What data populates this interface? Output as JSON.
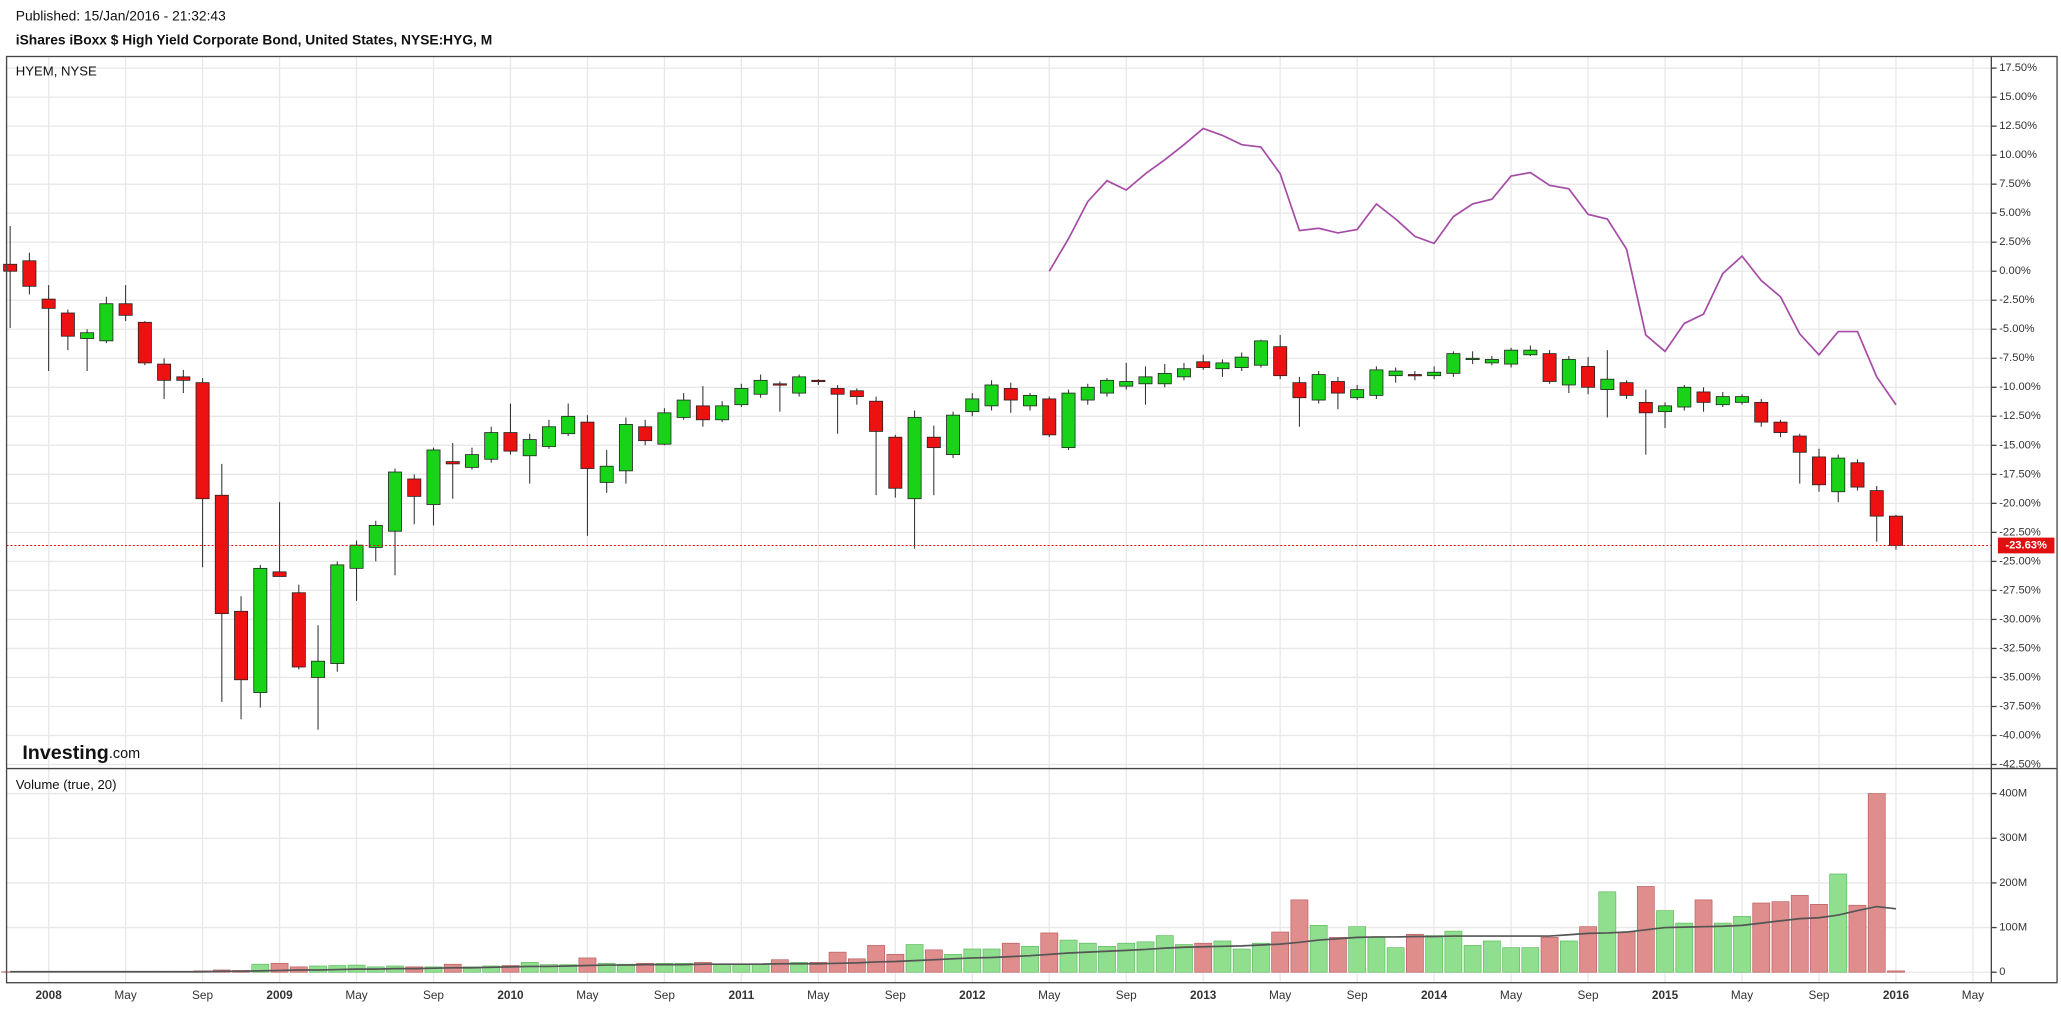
{
  "header": {
    "published": "Published: 15/Jan/2016 - 21:32:43",
    "title": "iShares iBoxx $ High Yield Corporate Bond, United States, NYSE:HYG, M"
  },
  "chart_data": [
    {
      "type": "candlestick",
      "title": "HYEM, NYSE",
      "logo": {
        "brand": "Investing",
        "suffix": ".com"
      },
      "categories": [
        null,
        null,
        "2008",
        null,
        null,
        null,
        "May",
        null,
        null,
        null,
        "Sep",
        null,
        null,
        null,
        "2009",
        null,
        null,
        null,
        "May",
        null,
        null,
        null,
        "Sep",
        null,
        null,
        null,
        "2010",
        null,
        null,
        null,
        "May",
        null,
        null,
        null,
        "Sep",
        null,
        null,
        null,
        "2011",
        null,
        null,
        null,
        "May",
        null,
        null,
        null,
        "Sep",
        null,
        null,
        null,
        "2012",
        null,
        null,
        null,
        "May",
        null,
        null,
        null,
        "Sep",
        null,
        null,
        null,
        "2013",
        null,
        null,
        null,
        "May",
        null,
        null,
        null,
        "Sep",
        null,
        null,
        null,
        "2014",
        null,
        null,
        null,
        "May",
        null,
        null,
        null,
        "Sep",
        null,
        null,
        null,
        "2015",
        null,
        null,
        null,
        "May",
        null,
        null,
        null,
        "Sep",
        null,
        null,
        null,
        "2016",
        null,
        null,
        null,
        "May"
      ],
      "open": [
        0.6,
        0.9,
        -2.4,
        -3.6,
        -5.8,
        -6.0,
        -2.8,
        -4.4,
        -8.0,
        -9.1,
        -9.6,
        -19.3,
        -29.3,
        -36.3,
        -25.9,
        -27.7,
        -35.0,
        -33.8,
        -25.6,
        -23.8,
        -22.4,
        -17.9,
        -20.1,
        -16.4,
        -16.9,
        -16.2,
        -13.9,
        -15.9,
        -15.1,
        -14.0,
        -13.0,
        -18.2,
        -17.2,
        -13.4,
        -14.9,
        -12.6,
        -11.6,
        -12.8,
        -11.5,
        -10.6,
        -9.7,
        -10.5,
        -9.4,
        -10.1,
        -10.3,
        -11.2,
        -14.3,
        -19.6,
        -14.3,
        -15.8,
        -12.1,
        -11.6,
        -10.1,
        -11.6,
        -11.0,
        -15.2,
        -11.1,
        -10.5,
        -9.9,
        -9.7,
        -9.7,
        -9.1,
        -7.8,
        -8.4,
        -8.3,
        -8.1,
        -6.5,
        -9.6,
        -11.1,
        -9.5,
        -10.9,
        -10.7,
        -9.0,
        -8.9,
        -9.0,
        -8.8,
        -7.6,
        -7.9,
        -8.0,
        -7.2,
        -7.1,
        -9.8,
        -8.2,
        -10.2,
        -9.6,
        -11.3,
        -12.1,
        -11.7,
        -10.4,
        -11.5,
        -11.3,
        -11.3,
        -13.0,
        -14.2,
        -16.0,
        -19.0,
        -16.5,
        -18.9,
        -21.1,
        null,
        null,
        null,
        null
      ],
      "high": [
        3.9,
        1.6,
        -1.2,
        -3.3,
        -5.0,
        -2.2,
        -1.2,
        -4.3,
        -7.5,
        -8.5,
        -9.2,
        -16.6,
        -28.0,
        -25.3,
        -19.9,
        -27.0,
        -30.5,
        -25.0,
        -23.2,
        -21.5,
        -17.0,
        -17.5,
        -15.2,
        -14.8,
        -15.2,
        -13.4,
        -11.4,
        -14.0,
        -12.8,
        -11.4,
        -12.4,
        -15.4,
        -12.6,
        -12.8,
        -11.8,
        -10.5,
        -9.9,
        -11.2,
        -9.7,
        -8.9,
        -9.5,
        -8.9,
        -9.3,
        -9.8,
        -10.1,
        -10.8,
        -14.1,
        -12.0,
        -13.3,
        -12.1,
        -10.5,
        -9.4,
        -9.6,
        -10.5,
        -10.8,
        -10.2,
        -9.7,
        -9.2,
        -7.9,
        -8.2,
        -8.0,
        -7.9,
        -7.2,
        -7.6,
        -7.0,
        -5.9,
        -5.5,
        -9.1,
        -8.6,
        -9.1,
        -9.8,
        -8.2,
        -8.3,
        -8.6,
        -8.2,
        -6.9,
        -6.9,
        -7.3,
        -6.6,
        -6.4,
        -6.8,
        -7.3,
        -7.4,
        -6.8,
        -9.4,
        -10.2,
        -11.3,
        -9.8,
        -10.0,
        -10.4,
        -10.6,
        -11.0,
        -12.8,
        -14.0,
        -15.3,
        -15.8,
        -16.2,
        -18.5,
        -21.0,
        null,
        null,
        null,
        null
      ],
      "low": [
        -4.9,
        -2.0,
        -8.6,
        -6.8,
        -8.6,
        -6.2,
        -4.3,
        -8.1,
        -11.0,
        -10.5,
        -25.5,
        -37.1,
        -38.6,
        -37.6,
        -26.3,
        -34.3,
        -39.5,
        -34.5,
        -28.4,
        -25.0,
        -26.2,
        -21.8,
        -21.9,
        -19.6,
        -17.1,
        -16.5,
        -15.8,
        -18.3,
        -15.3,
        -14.2,
        -22.8,
        -19.1,
        -18.3,
        -15.0,
        -15.0,
        -12.8,
        -13.4,
        -13.0,
        -11.7,
        -10.9,
        -12.1,
        -10.8,
        -9.8,
        -14.0,
        -11.5,
        -19.3,
        -19.5,
        -23.9,
        -19.3,
        -16.1,
        -12.5,
        -12.0,
        -12.2,
        -12.0,
        -14.3,
        -15.4,
        -11.5,
        -10.8,
        -10.2,
        -11.5,
        -10.0,
        -9.4,
        -8.5,
        -9.1,
        -8.6,
        -8.3,
        -9.3,
        -13.4,
        -11.4,
        -11.9,
        -11.1,
        -11.0,
        -9.6,
        -9.4,
        -9.3,
        -9.1,
        -8.0,
        -8.1,
        -8.3,
        -7.3,
        -9.7,
        -10.5,
        -10.6,
        -12.6,
        -11.0,
        -15.8,
        -13.5,
        -12.0,
        -12.1,
        -11.7,
        -11.5,
        -13.4,
        -14.3,
        -18.3,
        -19.0,
        -19.9,
        -18.9,
        -23.3,
        -24.0,
        null,
        null,
        null,
        null
      ],
      "close": [
        0,
        -1.3,
        -3.2,
        -5.6,
        -5.3,
        -2.8,
        -3.8,
        -7.9,
        -9.4,
        -9.4,
        -19.6,
        -29.5,
        -35.2,
        -25.6,
        -26.3,
        -34.1,
        -33.6,
        -25.3,
        -23.6,
        -21.9,
        -17.3,
        -19.4,
        -15.4,
        -16.6,
        -15.8,
        -13.9,
        -15.5,
        -14.5,
        -13.4,
        -12.5,
        -17.0,
        -16.8,
        -13.2,
        -14.6,
        -12.2,
        -11.1,
        -12.8,
        -11.6,
        -10.1,
        -9.4,
        -9.8,
        -9.1,
        -9.5,
        -10.6,
        -10.8,
        -13.8,
        -18.7,
        -12.6,
        -15.2,
        -12.4,
        -11.0,
        -9.8,
        -11.1,
        -10.7,
        -14.1,
        -10.5,
        -10.0,
        -9.4,
        -9.5,
        -9.1,
        -8.8,
        -8.4,
        -8.3,
        -7.9,
        -7.4,
        -6.0,
        -9.0,
        -10.9,
        -8.9,
        -10.5,
        -10.2,
        -8.5,
        -8.6,
        -9.0,
        -8.7,
        -7.1,
        -7.5,
        -7.6,
        -6.8,
        -6.8,
        -9.5,
        -7.6,
        -10.0,
        -9.3,
        -10.7,
        -12.2,
        -11.6,
        -10.0,
        -11.3,
        -10.8,
        -10.8,
        -13.0,
        -13.9,
        -15.6,
        -18.4,
        -16.1,
        -18.6,
        -21.1,
        -23.63,
        null,
        null,
        null,
        null
      ],
      "last_label": "-23.63%",
      "up_color": "#19d319",
      "down_color": "#ee1111",
      "last_color": "#e01010",
      "comparison": {
        "color": "#a64ca6",
        "values": [
          null,
          null,
          null,
          null,
          null,
          null,
          null,
          null,
          null,
          null,
          null,
          null,
          null,
          null,
          null,
          null,
          null,
          null,
          null,
          null,
          null,
          null,
          null,
          null,
          null,
          null,
          null,
          null,
          null,
          null,
          null,
          null,
          null,
          null,
          null,
          null,
          null,
          null,
          null,
          null,
          null,
          null,
          null,
          null,
          null,
          null,
          null,
          null,
          null,
          null,
          null,
          null,
          null,
          null,
          0,
          2.8,
          6.0,
          7.8,
          7.0,
          8.4,
          9.6,
          10.9,
          12.3,
          11.7,
          10.9,
          10.7,
          8.4,
          3.5,
          3.7,
          3.3,
          3.6,
          5.8,
          4.5,
          3.0,
          2.4,
          4.7,
          5.8,
          6.2,
          8.2,
          8.5,
          7.4,
          7.1,
          4.9,
          4.5,
          1.9,
          -5.5,
          -6.9,
          -4.5,
          -3.7,
          -0.2,
          1.3,
          -0.8,
          -2.2,
          -5.4,
          -7.2,
          -5.2,
          -5.2,
          -9.1,
          -11.5,
          null,
          null,
          null,
          null
        ]
      },
      "ylim": [
        -42.85,
        18.5
      ],
      "yticks": [
        {
          "value": 17.5,
          "label": "17.50%"
        },
        {
          "value": 15,
          "label": "15.00%"
        },
        {
          "value": 12.5,
          "label": "12.50%"
        },
        {
          "value": 10,
          "label": "10.00%"
        },
        {
          "value": 7.5,
          "label": "7.50%"
        },
        {
          "value": 5,
          "label": "5.00%"
        },
        {
          "value": 2.5,
          "label": "2.50%"
        },
        {
          "value": 0,
          "label": "0.00%"
        },
        {
          "value": -2.5,
          "label": "-2.50%"
        },
        {
          "value": -5,
          "label": "-5.00%"
        },
        {
          "value": -7.5,
          "label": "-7.50%"
        },
        {
          "value": -10,
          "label": "-10.00%"
        },
        {
          "value": -12.5,
          "label": "-12.50%"
        },
        {
          "value": -15,
          "label": "-15.00%"
        },
        {
          "value": -17.5,
          "label": "-17.50%"
        },
        {
          "value": -20,
          "label": "-20.00%"
        },
        {
          "value": -22.5,
          "label": "-22.50%"
        },
        {
          "value": -25,
          "label": "-25.00%"
        },
        {
          "value": -27.5,
          "label": "-27.50%"
        },
        {
          "value": -30,
          "label": "-30.00%"
        },
        {
          "value": -32.5,
          "label": "-32.50%"
        },
        {
          "value": -35,
          "label": "-35.00%"
        },
        {
          "value": -37.5,
          "label": "-37.50%"
        },
        {
          "value": -40,
          "label": "-40.00%"
        },
        {
          "value": -42.5,
          "label": "-42.50%"
        }
      ],
      "grid": true
    },
    {
      "type": "bar",
      "title": "Volume (true, 20)",
      "values": [
        1,
        1,
        1,
        1,
        1,
        2,
        2,
        1,
        1,
        1,
        3,
        5,
        4,
        18,
        20,
        12,
        14,
        15,
        16,
        12,
        14,
        12,
        12,
        18,
        12,
        14,
        15,
        22,
        17,
        17,
        32,
        20,
        18,
        20,
        20,
        20,
        22,
        18,
        18,
        18,
        28,
        22,
        22,
        45,
        30,
        60,
        40,
        62,
        50,
        40,
        52,
        52,
        65,
        58,
        88,
        72,
        65,
        58,
        65,
        68,
        82,
        62,
        65,
        70,
        52,
        65,
        90,
        162,
        105,
        78,
        102,
        78,
        55,
        85,
        82,
        92,
        60,
        70,
        55,
        55,
        78,
        70,
        102,
        180,
        90,
        192,
        138,
        110,
        162,
        110,
        125,
        155,
        158,
        172,
        152,
        220,
        150,
        400,
        3,
        null,
        null,
        null,
        null
      ],
      "up_color": "#8fdf8f",
      "down_color": "#e08d8d",
      "ma": {
        "color": "#555555",
        "values": [
          1,
          1,
          1,
          1,
          1,
          1,
          1,
          1,
          1,
          1,
          1,
          2,
          2,
          3,
          4,
          5,
          5,
          6,
          7,
          7,
          8,
          8,
          9,
          10,
          10,
          11,
          12,
          13,
          13,
          14,
          15,
          16,
          16,
          17,
          17,
          17,
          18,
          18,
          18,
          18,
          19,
          19,
          19,
          20,
          21,
          23,
          24,
          26,
          28,
          30,
          32,
          33,
          35,
          37,
          40,
          43,
          45,
          47,
          49,
          51,
          54,
          56,
          57,
          58,
          59,
          61,
          63,
          67,
          72,
          75,
          78,
          79,
          79,
          80,
          80,
          81,
          81,
          81,
          81,
          81,
          81,
          84,
          87,
          88,
          90,
          95,
          100,
          101,
          102,
          103,
          105,
          110,
          115,
          120,
          122,
          128,
          138,
          147,
          142,
          null,
          null,
          null,
          null
        ]
      },
      "ylim": [
        -23.5,
        456
      ],
      "yticks": [
        0,
        {
          "value": 100,
          "label": "100M"
        },
        {
          "value": 200,
          "label": "200M"
        },
        {
          "value": 300,
          "label": "300M"
        },
        {
          "value": 400,
          "label": "400M"
        }
      ],
      "grid": true
    }
  ]
}
